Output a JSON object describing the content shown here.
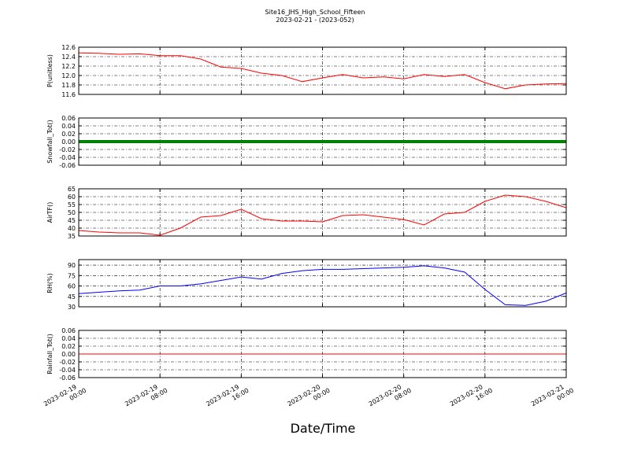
{
  "title": "Site16_JHS_High_School_Fifteen",
  "subtitle": "2023-02-21 - (2023-052)",
  "xlabel": "Date/Time",
  "xlim": [
    "2023-02-19 00:00",
    "2023-02-21 00:00"
  ],
  "xticks": [
    "2023-02-19 00:00",
    "2023-02-19 08:00",
    "2023-02-19 16:00",
    "2023-02-20 00:00",
    "2023-02-20 08:00",
    "2023-02-20 16:00",
    "2023-02-21 00:00"
  ],
  "x": [
    "2023-02-19 00:00",
    "2023-02-19 02:00",
    "2023-02-19 04:00",
    "2023-02-19 06:00",
    "2023-02-19 08:00",
    "2023-02-19 10:00",
    "2023-02-19 12:00",
    "2023-02-19 14:00",
    "2023-02-19 16:00",
    "2023-02-19 18:00",
    "2023-02-19 20:00",
    "2023-02-19 22:00",
    "2023-02-20 00:00",
    "2023-02-20 02:00",
    "2023-02-20 04:00",
    "2023-02-20 06:00",
    "2023-02-20 08:00",
    "2023-02-20 10:00",
    "2023-02-20 12:00",
    "2023-02-20 14:00",
    "2023-02-20 16:00",
    "2023-02-20 18:00",
    "2023-02-20 20:00",
    "2023-02-20 22:00",
    "2023-02-21 00:00"
  ],
  "grid": true,
  "chart_data": [
    {
      "type": "line",
      "ylabel": "P(unitless)",
      "ylim": [
        11.6,
        12.6
      ],
      "yticks": [
        11.6,
        11.8,
        {
          "value": 12.0,
          "label": "12.0"
        },
        12.2,
        12.4,
        12.6
      ],
      "series": [
        {
          "color": "#ff0000",
          "values": [
            12.48,
            12.47,
            12.45,
            12.46,
            12.42,
            12.42,
            12.35,
            12.18,
            12.15,
            12.05,
            12.0,
            11.87,
            11.95,
            12.02,
            11.95,
            11.97,
            11.93,
            12.02,
            11.98,
            12.02,
            11.85,
            11.72,
            11.8,
            11.82,
            11.83
          ]
        }
      ]
    },
    {
      "type": "line",
      "ylabel": "Snowfall_Tot()",
      "ylim": [
        -0.06,
        0.06
      ],
      "yticks": [
        -0.06,
        -0.04,
        -0.02,
        {
          "value": 0,
          "label": "0.00"
        },
        0.02,
        0.04,
        0.06
      ],
      "width": 4,
      "series": [
        {
          "color": "#008000",
          "values": [
            0,
            0,
            0,
            0,
            0,
            0,
            0,
            0,
            0,
            0,
            0,
            0,
            0,
            0,
            0,
            0,
            0,
            0,
            0,
            0,
            0,
            0,
            0,
            0,
            0
          ]
        }
      ]
    },
    {
      "type": "line",
      "ylabel": "AirTF()",
      "ylim": [
        35,
        65
      ],
      "yticks": [
        35,
        40,
        45,
        50,
        55,
        60,
        65
      ],
      "series": [
        {
          "color": "#ff0000",
          "values": [
            38.5,
            37.5,
            37,
            37,
            35.5,
            40,
            47,
            48,
            52,
            46,
            44.5,
            44.5,
            44,
            48,
            48.5,
            47,
            45.5,
            42,
            49,
            50,
            57,
            61,
            60,
            57,
            53
          ]
        }
      ]
    },
    {
      "type": "line",
      "ylabel": "RH(%)",
      "ylim": [
        30,
        98
      ],
      "yticks": [
        30,
        45,
        60,
        75,
        90
      ],
      "series": [
        {
          "color": "#0000ff",
          "values": [
            49,
            51,
            53,
            54,
            60,
            60,
            63,
            68,
            73,
            70,
            78,
            82,
            84,
            84,
            85,
            86,
            87,
            89,
            86,
            80,
            55,
            33,
            32,
            38,
            50
          ]
        }
      ]
    },
    {
      "type": "line",
      "ylabel": "Rainfall_Tot()",
      "ylim": [
        -0.06,
        0.06
      ],
      "yticks": [
        -0.06,
        -0.04,
        -0.02,
        {
          "value": 0,
          "label": "0.00"
        },
        0.02,
        0.04,
        0.06
      ],
      "series": [
        {
          "color": "#ff0000",
          "values": [
            0,
            0,
            0,
            0,
            0,
            0,
            0,
            0,
            0,
            0,
            0,
            0,
            0,
            0,
            0,
            0,
            0,
            0,
            0,
            0,
            0,
            0,
            0,
            0,
            0
          ]
        }
      ]
    }
  ]
}
